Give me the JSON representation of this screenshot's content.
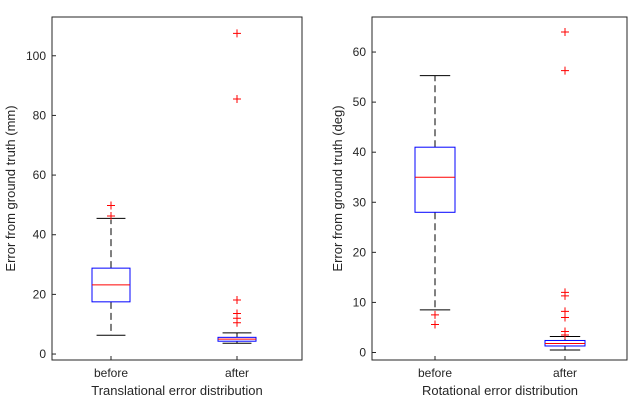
{
  "chart_data": [
    {
      "type": "box",
      "title": "",
      "xlabel": "Translational error distribution",
      "ylabel": "Error from ground truth (mm)",
      "ylim": [
        -2,
        113
      ],
      "yticks": [
        0,
        20,
        40,
        60,
        80,
        100
      ],
      "categories": [
        "before",
        "after"
      ],
      "grid": false,
      "boxes": [
        {
          "category": "before",
          "q1": 17.5,
          "median": 23.2,
          "q3": 28.8,
          "whisker_low": 6.3,
          "whisker_high": 45.5,
          "outliers": [
            46.3,
            49.8
          ]
        },
        {
          "category": "after",
          "q1": 4.3,
          "median": 5.0,
          "q3": 5.6,
          "whisker_low": 3.6,
          "whisker_high": 7.1,
          "outliers": [
            107.5,
            85.5,
            18.1,
            13.6,
            12.0,
            10.5
          ]
        }
      ]
    },
    {
      "type": "box",
      "title": "",
      "xlabel": "Rotational error distribution",
      "ylabel": "Error from ground truth (deg)",
      "ylim": [
        -1.5,
        67
      ],
      "yticks": [
        0,
        10,
        20,
        30,
        40,
        50,
        60
      ],
      "categories": [
        "before",
        "after"
      ],
      "grid": false,
      "boxes": [
        {
          "category": "before",
          "q1": 28.0,
          "median": 35.0,
          "q3": 41.0,
          "whisker_low": 8.5,
          "whisker_high": 55.3,
          "outliers": [
            7.5,
            5.6
          ]
        },
        {
          "category": "after",
          "q1": 1.3,
          "median": 1.8,
          "q3": 2.4,
          "whisker_low": 0.5,
          "whisker_high": 3.2,
          "outliers": [
            64.0,
            56.3,
            12.0,
            11.3,
            8.2,
            7.0,
            4.2,
            3.5
          ]
        }
      ]
    }
  ],
  "colors": {
    "box": "#0000ff",
    "median": "#ff0000",
    "outlier": "#ff0000",
    "whisker": "#000000",
    "axis": "#262626"
  }
}
